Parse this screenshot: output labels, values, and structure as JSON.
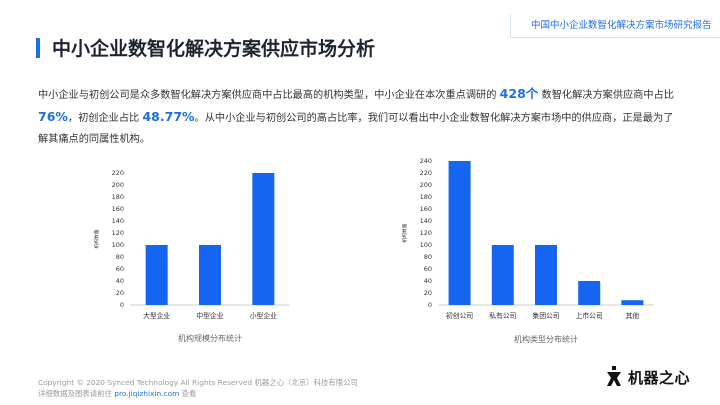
{
  "header": {
    "report_tag": "中国中小企业数智化解决方案市场研究报告",
    "title": "中小企业数智化解决方案供应市场分析"
  },
  "body": {
    "p1": "中小企业与初创公司是众多数智化解决方案供应商中占比最高的机构类型，中小企业在本次重点调研的 ",
    "h1": "428个",
    "p2": " 数智化解决方案供应商中占比 ",
    "h2": "76%",
    "p3": "，初创企业占比 ",
    "h3": "48.77%",
    "p4": "。从中小企业与初创公司的高占比率，我们可以看出中小企业数智化解决方案市场中的供应商，正是最为了解其痛点的同属性机构。"
  },
  "chart_data": [
    {
      "type": "bar",
      "categories": [
        "大型企业",
        "中型企业",
        "小型企业"
      ],
      "values": [
        100,
        100,
        220
      ],
      "xlabel": "机构规模分布统计",
      "ylabel": "机构数量",
      "ylim": [
        0,
        220
      ],
      "yticks": [
        0,
        20,
        40,
        60,
        80,
        100,
        120,
        140,
        160,
        180,
        200,
        220
      ],
      "color": "#1565f0"
    },
    {
      "type": "bar",
      "categories": [
        "初创公司",
        "私有公司",
        "集团公司",
        "上市公司",
        "其他"
      ],
      "values": [
        240,
        100,
        100,
        40,
        8
      ],
      "xlabel": "机构类型分布统计",
      "ylabel": "机构数量",
      "ylim": [
        0,
        240
      ],
      "yticks": [
        0,
        20,
        40,
        60,
        80,
        100,
        120,
        140,
        160,
        180,
        200,
        220,
        240
      ],
      "color": "#1565f0"
    }
  ],
  "footer": {
    "copyright": "Copyright © 2020 Synced Technology All Rights Reserved  机器之心（北京）科技有限公司",
    "more_prefix": "详细数据及图表请前往 ",
    "link": "pro.jiqizhixin.com",
    "more_suffix": " 查看"
  },
  "logo": {
    "text": "机器之心",
    "icon": "robot-logo-icon"
  }
}
